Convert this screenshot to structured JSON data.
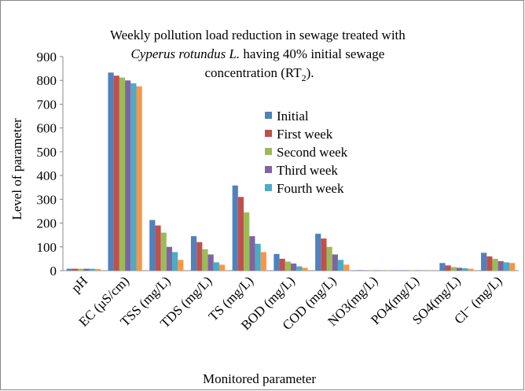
{
  "chart_data": {
    "type": "bar",
    "title": {
      "line1": "Weekly pollution load reduction in sewage treated with",
      "italic": "Cyperus rotundus L.",
      "line2_rest": " having 40% initial sewage",
      "line3": "concentration (RT",
      "subscript": "2",
      "line3_end": ")."
    },
    "x_label": "Monitored parameter",
    "y_label": "Level of parameter",
    "categories": [
      "pH",
      "EC (µS/cm)",
      "TSS (mg/L)",
      "TDS (mg/L)",
      "TS (mg/L)",
      "BOD (mg/L)",
      "COD (mg/L)",
      "NO3(mg/L)",
      "PO4(mg/L)",
      "SO4(mg/L)",
      "Cl⁻ (mg/L)"
    ],
    "series": [
      {
        "name": "Initial",
        "color": "#4f81bd",
        "values": [
          8,
          833,
          213,
          145,
          358,
          70,
          155,
          2,
          1,
          32,
          75
        ]
      },
      {
        "name": "First week",
        "color": "#c0504d",
        "values": [
          8,
          820,
          190,
          120,
          310,
          50,
          135,
          1,
          1,
          22,
          60
        ]
      },
      {
        "name": "Second week",
        "color": "#9bbb59",
        "values": [
          8,
          812,
          160,
          90,
          245,
          38,
          100,
          1,
          1,
          15,
          50
        ]
      },
      {
        "name": "Third week",
        "color": "#8064a2",
        "values": [
          8,
          800,
          100,
          68,
          145,
          30,
          68,
          1,
          1,
          12,
          40
        ]
      },
      {
        "name": "Fourth week",
        "color": "#4bacc6",
        "values": [
          8,
          788,
          78,
          35,
          113,
          18,
          45,
          1,
          1,
          10,
          35
        ]
      },
      {
        "color": "#f79646",
        "values": [
          7,
          775,
          45,
          25,
          78,
          12,
          25,
          1,
          1,
          8,
          32
        ]
      }
    ],
    "ylim": [
      0,
      900
    ],
    "yticks": [
      0,
      100,
      200,
      300,
      400,
      500,
      600,
      700,
      800,
      900
    ],
    "grid": false
  }
}
